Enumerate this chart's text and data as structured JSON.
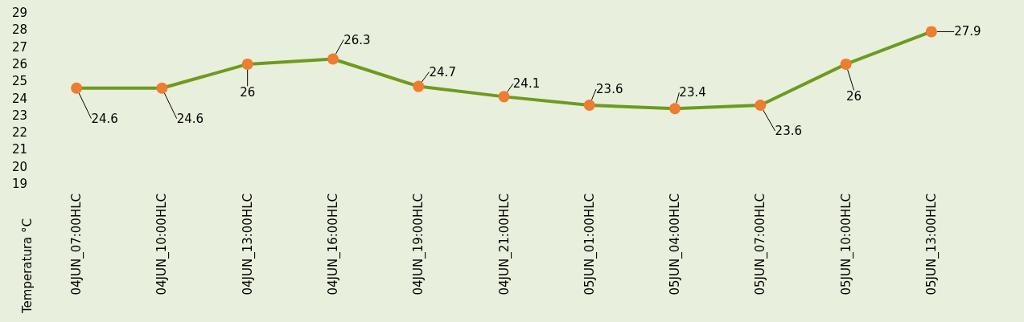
{
  "chart_data": {
    "type": "line",
    "ylabel": "Temperatura °C",
    "categories": [
      "04JUN_07:00HLC",
      "04JUN_10:00HLC",
      "04JUN_13:00HLC",
      "04JUN_16:00HLC",
      "04JUN_19:00HLC",
      "04JUN_21:00HLC",
      "05JUN_01:00HLC",
      "05JUN_04:00HLC",
      "05JUN_07:00HLC",
      "05JUN_10:00HLC",
      "05JUN_13:00HLC"
    ],
    "series": [
      {
        "color": "#6e9a1e",
        "colors": [
          "#ed7d31",
          "#ed7d31",
          "#ed7d31",
          "#ed7d31",
          "#ed7d31",
          "#ed7d31",
          "#ed7d31",
          "#ed7d31",
          "#ed7d31",
          "#ed7d31",
          "#ed7d31"
        ],
        "values": [
          24.6,
          24.6,
          26,
          26.3,
          24.7,
          24.1,
          23.6,
          23.4,
          23.6,
          26,
          27.9
        ]
      }
    ],
    "ylim": [
      19,
      29
    ],
    "yticks": [
      19,
      20,
      21,
      22,
      23,
      24,
      25,
      26,
      27,
      28,
      29
    ],
    "grid": false,
    "marker": "circle",
    "line_style": "solid",
    "data_labels": true
  }
}
